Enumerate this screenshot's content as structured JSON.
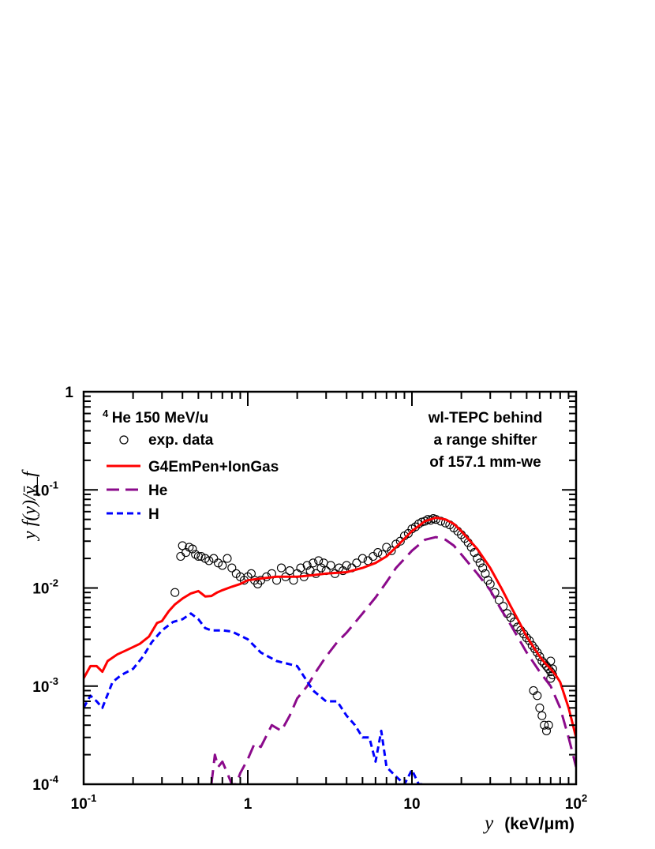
{
  "chart_data": {
    "type": "scatter",
    "x_scale": "log",
    "y_scale": "log",
    "xlim": [
      0.1,
      100
    ],
    "ylim": [
      0.0001,
      1
    ],
    "x_ticks": [
      {
        "value": 0.1,
        "base": "10",
        "exp": "-1"
      },
      {
        "value": 1,
        "base": "1",
        "exp": ""
      },
      {
        "value": 10,
        "base": "10",
        "exp": ""
      },
      {
        "value": 100,
        "base": "10",
        "exp": "2"
      }
    ],
    "y_ticks": [
      {
        "value": 1,
        "base": "1",
        "exp": ""
      },
      {
        "value": 0.1,
        "base": "10",
        "exp": "-1"
      },
      {
        "value": 0.01,
        "base": "10",
        "exp": "-2"
      },
      {
        "value": 0.001,
        "base": "10",
        "exp": "-3"
      },
      {
        "value": 0.0001,
        "base": "10",
        "exp": "-4"
      }
    ],
    "xlabel_var": "y",
    "xlabel_unit": "(keV/μm)",
    "ylabel": "y f(y)/ȳ_f",
    "annotation_left_super": "4",
    "annotation_left": "He 150 MeV/u",
    "annotation_right": [
      "wl-TEPC behind",
      "a range shifter",
      "of 157.1 mm-we"
    ],
    "legend": [
      {
        "label": "exp. data",
        "style": "marker-circle",
        "color": "#000000"
      },
      {
        "label": "G4EmPen+IonGas",
        "style": "solid",
        "color": "#ff0000"
      },
      {
        "label": "He",
        "style": "long-dash",
        "color": "#8b0a8b"
      },
      {
        "label": "H",
        "style": "short-dash",
        "color": "#0000ff"
      }
    ],
    "series": [
      {
        "name": "exp. data",
        "style": "marker-circle",
        "color": "#000000",
        "x": [
          0.36,
          0.39,
          0.4,
          0.42,
          0.44,
          0.46,
          0.48,
          0.5,
          0.52,
          0.55,
          0.58,
          0.62,
          0.66,
          0.7,
          0.75,
          0.8,
          0.85,
          0.9,
          0.95,
          1.0,
          1.05,
          1.1,
          1.15,
          1.2,
          1.3,
          1.4,
          1.5,
          1.6,
          1.7,
          1.8,
          1.9,
          2.0,
          2.1,
          2.2,
          2.3,
          2.4,
          2.5,
          2.6,
          2.7,
          2.8,
          2.9,
          3.0,
          3.2,
          3.4,
          3.6,
          3.8,
          4.0,
          4.3,
          4.6,
          5.0,
          5.4,
          5.8,
          6.2,
          6.6,
          7.0,
          7.5,
          8.0,
          8.5,
          9.0,
          9.5,
          10,
          10.5,
          11,
          11.5,
          12,
          12.5,
          13,
          13.5,
          14,
          15,
          16,
          17,
          18,
          19,
          20,
          21,
          22,
          23,
          24,
          25,
          26,
          27,
          28,
          29,
          30,
          32,
          34,
          36,
          38,
          40,
          42,
          44,
          46,
          48,
          50,
          52,
          54,
          56,
          58,
          60,
          62,
          64,
          66,
          68,
          70,
          72,
          55,
          58,
          60,
          62,
          64,
          66,
          68,
          70,
          72,
          70
        ],
        "y": [
          0.009,
          0.021,
          0.027,
          0.023,
          0.026,
          0.025,
          0.022,
          0.021,
          0.021,
          0.02,
          0.019,
          0.02,
          0.018,
          0.017,
          0.02,
          0.016,
          0.014,
          0.013,
          0.012,
          0.013,
          0.014,
          0.012,
          0.011,
          0.012,
          0.013,
          0.014,
          0.012,
          0.016,
          0.013,
          0.015,
          0.012,
          0.014,
          0.016,
          0.013,
          0.017,
          0.015,
          0.018,
          0.014,
          0.019,
          0.016,
          0.018,
          0.015,
          0.017,
          0.014,
          0.016,
          0.015,
          0.017,
          0.016,
          0.018,
          0.02,
          0.019,
          0.021,
          0.023,
          0.022,
          0.026,
          0.024,
          0.028,
          0.03,
          0.034,
          0.036,
          0.04,
          0.042,
          0.045,
          0.047,
          0.048,
          0.05,
          0.049,
          0.051,
          0.05,
          0.048,
          0.046,
          0.044,
          0.041,
          0.038,
          0.035,
          0.032,
          0.029,
          0.026,
          0.023,
          0.02,
          0.018,
          0.016,
          0.014,
          0.012,
          0.011,
          0.009,
          0.0075,
          0.0065,
          0.0055,
          0.005,
          0.0045,
          0.004,
          0.0037,
          0.0034,
          0.0031,
          0.0029,
          0.0026,
          0.0024,
          0.0022,
          0.002,
          0.0018,
          0.0017,
          0.0016,
          0.0015,
          0.0014,
          0.0013,
          0.0009,
          0.0008,
          0.0006,
          0.0005,
          0.0004,
          0.00035,
          0.0004,
          0.0018,
          0.0015,
          0.0012
        ]
      },
      {
        "name": "G4EmPen+IonGas",
        "style": "solid",
        "color": "#ff0000",
        "x": [
          0.1,
          0.11,
          0.12,
          0.13,
          0.14,
          0.16,
          0.18,
          0.2,
          0.22,
          0.25,
          0.28,
          0.3,
          0.33,
          0.36,
          0.4,
          0.45,
          0.5,
          0.55,
          0.6,
          0.65,
          0.7,
          0.8,
          0.9,
          1.0,
          1.2,
          1.5,
          2.0,
          2.5,
          3.0,
          4.0,
          5.0,
          6.0,
          7.0,
          8.0,
          10,
          12,
          14,
          16,
          18,
          20,
          25,
          30,
          35,
          40,
          45,
          50,
          55,
          60,
          65,
          70,
          75,
          80,
          90,
          100
        ],
        "y": [
          0.0012,
          0.0016,
          0.0016,
          0.0014,
          0.0018,
          0.0021,
          0.0023,
          0.0025,
          0.0027,
          0.0032,
          0.0044,
          0.0046,
          0.0058,
          0.0068,
          0.0078,
          0.0088,
          0.0093,
          0.0082,
          0.0083,
          0.009,
          0.0095,
          0.0103,
          0.011,
          0.012,
          0.0125,
          0.013,
          0.013,
          0.0135,
          0.014,
          0.0145,
          0.016,
          0.018,
          0.021,
          0.026,
          0.038,
          0.048,
          0.052,
          0.05,
          0.045,
          0.038,
          0.025,
          0.016,
          0.01,
          0.0065,
          0.0045,
          0.0032,
          0.0025,
          0.002,
          0.0017,
          0.0015,
          0.0013,
          0.0011,
          0.0006,
          0.0003
        ]
      },
      {
        "name": "He",
        "style": "long-dash",
        "color": "#8b0a8b",
        "x": [
          0.6,
          0.63,
          0.66,
          0.7,
          0.75,
          0.8,
          0.85,
          0.9,
          1.0,
          1.1,
          1.2,
          1.4,
          1.6,
          1.8,
          2.0,
          2.3,
          2.6,
          3.0,
          3.5,
          4.0,
          5.0,
          6.0,
          7.0,
          8.0,
          10,
          12,
          14,
          16,
          18,
          20,
          25,
          30,
          35,
          40,
          50,
          60,
          70,
          80,
          90,
          100
        ],
        "y": [
          0.0001,
          0.0002,
          0.00015,
          0.00017,
          0.00013,
          0.0001,
          0.0001,
          0.00013,
          0.00018,
          0.00026,
          0.00024,
          0.0004,
          0.00035,
          0.0005,
          0.00075,
          0.001,
          0.0014,
          0.002,
          0.0028,
          0.0035,
          0.0055,
          0.008,
          0.0115,
          0.016,
          0.024,
          0.031,
          0.033,
          0.031,
          0.027,
          0.022,
          0.014,
          0.0095,
          0.006,
          0.0042,
          0.0022,
          0.0014,
          0.001,
          0.0006,
          0.0003,
          0.00015
        ]
      },
      {
        "name": "H",
        "style": "short-dash",
        "color": "#0000ff",
        "x": [
          0.1,
          0.11,
          0.12,
          0.13,
          0.15,
          0.17,
          0.2,
          0.23,
          0.26,
          0.3,
          0.35,
          0.4,
          0.45,
          0.5,
          0.55,
          0.6,
          0.7,
          0.8,
          1.0,
          1.2,
          1.5,
          2.0,
          2.5,
          3.0,
          3.5,
          4.0,
          4.5,
          5.0,
          5.5,
          6.0,
          6.5,
          7.0,
          8.0,
          9.0,
          10,
          11,
          12
        ],
        "y": [
          0.0006,
          0.0008,
          0.0007,
          0.0006,
          0.0011,
          0.0013,
          0.0015,
          0.002,
          0.0028,
          0.0037,
          0.0045,
          0.0048,
          0.0055,
          0.0048,
          0.0039,
          0.0037,
          0.0037,
          0.0036,
          0.003,
          0.0022,
          0.0018,
          0.0016,
          0.0009,
          0.0007,
          0.0007,
          0.0005,
          0.0004,
          0.0003,
          0.0003,
          0.00017,
          0.00035,
          0.00015,
          0.00012,
          0.0001,
          0.00014,
          0.0001,
          0.0001
        ]
      }
    ]
  }
}
